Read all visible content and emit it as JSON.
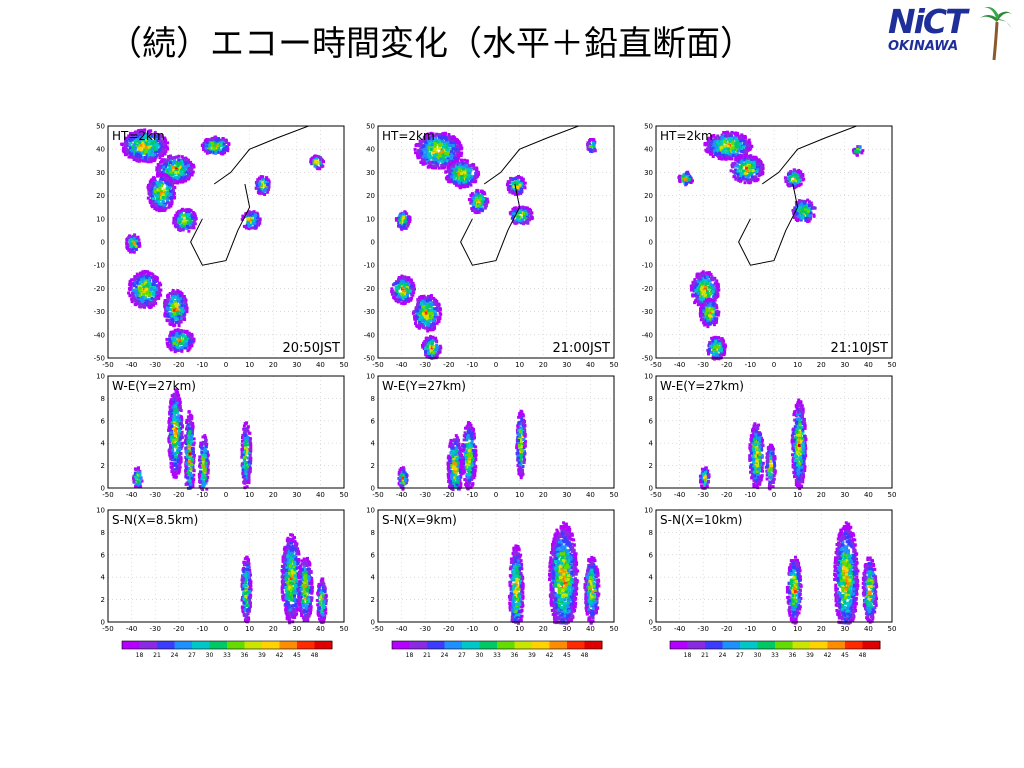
{
  "slide": {
    "title": "（続）エコー時間変化（水平＋鉛直断面）",
    "logo": {
      "main": "NiCT",
      "sub": "OKINAWA"
    }
  },
  "chart_data": [
    {
      "type": "heatmap",
      "time": "20:50JST",
      "panels": {
        "horizontal": {
          "label": "HT=2km",
          "xlim": [
            -50,
            50
          ],
          "ylim": [
            -50,
            50
          ],
          "xticks": [
            -50,
            -40,
            -30,
            -20,
            -10,
            0,
            10,
            20,
            30,
            40,
            50
          ],
          "yticks": [
            -50,
            -40,
            -30,
            -20,
            -10,
            0,
            10,
            20,
            30,
            40,
            50
          ]
        },
        "we": {
          "label": "W-E(Y=27km)",
          "xlim": [
            -50,
            50
          ],
          "ylim": [
            0,
            10
          ],
          "xticks": [
            -50,
            -40,
            -30,
            -20,
            -10,
            0,
            10,
            20,
            30,
            40,
            50
          ],
          "yticks": [
            0,
            2,
            4,
            6,
            8,
            10
          ]
        },
        "sn": {
          "label": "S-N(X=8.5km)",
          "xlim": [
            -50,
            50
          ],
          "ylim": [
            0,
            10
          ],
          "xticks": [
            -50,
            -40,
            -30,
            -20,
            -10,
            0,
            10,
            20,
            30,
            40,
            50
          ],
          "yticks": [
            0,
            2,
            4,
            6,
            8,
            10
          ]
        }
      }
    },
    {
      "type": "heatmap",
      "time": "21:00JST",
      "panels": {
        "horizontal": {
          "label": "HT=2km",
          "xlim": [
            -50,
            50
          ],
          "ylim": [
            -50,
            50
          ],
          "xticks": [
            -50,
            -40,
            -30,
            -20,
            -10,
            0,
            10,
            20,
            30,
            40,
            50
          ],
          "yticks": [
            -50,
            -40,
            -30,
            -20,
            -10,
            0,
            10,
            20,
            30,
            40,
            50
          ]
        },
        "we": {
          "label": "W-E(Y=27km)",
          "xlim": [
            -50,
            50
          ],
          "ylim": [
            0,
            10
          ],
          "xticks": [
            -50,
            -40,
            -30,
            -20,
            -10,
            0,
            10,
            20,
            30,
            40,
            50
          ],
          "yticks": [
            0,
            2,
            4,
            6,
            8,
            10
          ]
        },
        "sn": {
          "label": "S-N(X=9km)",
          "xlim": [
            -50,
            50
          ],
          "ylim": [
            0,
            10
          ],
          "xticks": [
            -50,
            -40,
            -30,
            -20,
            -10,
            0,
            10,
            20,
            30,
            40,
            50
          ],
          "yticks": [
            0,
            2,
            4,
            6,
            8,
            10
          ]
        }
      }
    },
    {
      "type": "heatmap",
      "time": "21:10JST",
      "panels": {
        "horizontal": {
          "label": "HT=2km",
          "xlim": [
            -50,
            50
          ],
          "ylim": [
            -50,
            50
          ],
          "xticks": [
            -50,
            -40,
            -30,
            -20,
            -10,
            0,
            10,
            20,
            30,
            40,
            50
          ],
          "yticks": [
            -50,
            -40,
            -30,
            -20,
            -10,
            0,
            10,
            20,
            30,
            40,
            50
          ]
        },
        "we": {
          "label": "W-E(Y=27km)",
          "xlim": [
            -50,
            50
          ],
          "ylim": [
            0,
            10
          ],
          "xticks": [
            -50,
            -40,
            -30,
            -20,
            -10,
            0,
            10,
            20,
            30,
            40,
            50
          ],
          "yticks": [
            0,
            2,
            4,
            6,
            8,
            10
          ]
        },
        "sn": {
          "label": "S-N(X=10km)",
          "xlim": [
            -50,
            50
          ],
          "ylim": [
            0,
            10
          ],
          "xticks": [
            -50,
            -40,
            -30,
            -20,
            -10,
            0,
            10,
            20,
            30,
            40,
            50
          ],
          "yticks": [
            0,
            2,
            4,
            6,
            8,
            10
          ]
        }
      }
    }
  ],
  "colorbar": {
    "values": [
      18,
      21,
      24,
      27,
      30,
      33,
      36,
      39,
      42,
      45,
      48
    ],
    "colors": [
      "#b400ff",
      "#8a2be2",
      "#3c3cff",
      "#1e90ff",
      "#00c8c8",
      "#00c864",
      "#64dc00",
      "#c8e600",
      "#ffd200",
      "#ff8c00",
      "#ff2a00",
      "#e00000"
    ]
  },
  "echo_cells": {
    "t0": {
      "horizontal": [
        [
          -35,
          42,
          10,
          7
        ],
        [
          -22,
          32,
          8,
          6
        ],
        [
          -28,
          22,
          6,
          8
        ],
        [
          -18,
          10,
          5,
          5
        ],
        [
          -35,
          -20,
          7,
          8
        ],
        [
          -22,
          -28,
          5,
          8
        ],
        [
          -20,
          -42,
          6,
          5
        ],
        [
          15,
          25,
          3,
          4
        ],
        [
          10,
          10,
          4,
          4
        ],
        [
          -5,
          42,
          6,
          4
        ],
        [
          -40,
          0,
          3,
          4
        ],
        [
          38,
          35,
          3,
          3
        ]
      ],
      "we": [
        [
          -22,
          5,
          3,
          4
        ],
        [
          -16,
          3,
          2,
          4
        ],
        [
          -10,
          2,
          2,
          3
        ],
        [
          8,
          3,
          2,
          3
        ],
        [
          -38,
          1,
          2,
          1
        ]
      ],
      "sn": [
        [
          8,
          3,
          2,
          3
        ],
        [
          27,
          4,
          4,
          4
        ],
        [
          33,
          3,
          3,
          3
        ],
        [
          40,
          2,
          2,
          2
        ]
      ]
    },
    "t1": {
      "horizontal": [
        [
          -25,
          40,
          10,
          8
        ],
        [
          -15,
          30,
          7,
          6
        ],
        [
          -8,
          18,
          4,
          5
        ],
        [
          8,
          25,
          4,
          4
        ],
        [
          10,
          12,
          5,
          4
        ],
        [
          -40,
          -20,
          5,
          6
        ],
        [
          -30,
          -30,
          6,
          8
        ],
        [
          -28,
          -45,
          4,
          5
        ],
        [
          -40,
          10,
          3,
          4
        ],
        [
          40,
          42,
          2,
          3
        ]
      ],
      "we": [
        [
          -12,
          3,
          3,
          3
        ],
        [
          -18,
          2,
          3,
          3
        ],
        [
          10,
          4,
          2,
          3
        ],
        [
          -40,
          1,
          2,
          1
        ]
      ],
      "sn": [
        [
          8,
          3,
          3,
          4
        ],
        [
          28,
          4,
          6,
          5
        ],
        [
          40,
          3,
          3,
          3
        ]
      ]
    },
    "t2": {
      "horizontal": [
        [
          -20,
          42,
          10,
          6
        ],
        [
          -12,
          32,
          7,
          6
        ],
        [
          8,
          28,
          4,
          4
        ],
        [
          12,
          14,
          5,
          5
        ],
        [
          -30,
          -20,
          6,
          8
        ],
        [
          -28,
          -30,
          4,
          6
        ],
        [
          -25,
          -45,
          4,
          5
        ],
        [
          -38,
          28,
          3,
          3
        ],
        [
          35,
          40,
          2,
          2
        ]
      ],
      "we": [
        [
          10,
          4,
          3,
          4
        ],
        [
          -8,
          3,
          3,
          3
        ],
        [
          -2,
          2,
          2,
          2
        ],
        [
          -30,
          1,
          2,
          1
        ]
      ],
      "sn": [
        [
          8,
          3,
          3,
          3
        ],
        [
          30,
          4,
          5,
          5
        ],
        [
          40,
          3,
          3,
          3
        ]
      ]
    }
  }
}
